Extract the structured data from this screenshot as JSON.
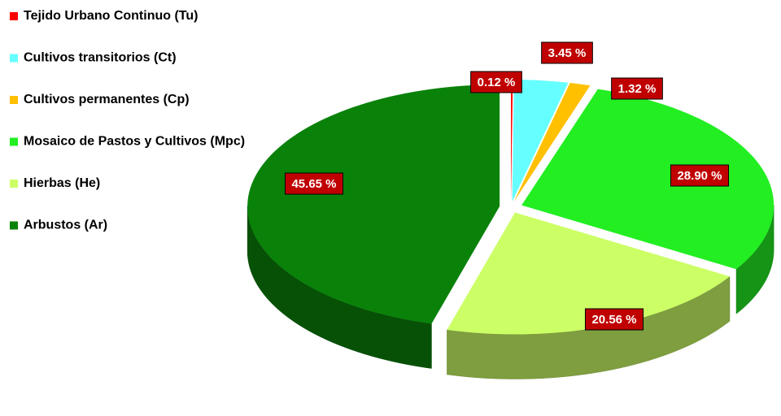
{
  "chart_data": {
    "type": "pie",
    "categories": [
      "Tejido Urbano Continuo (Tu)",
      "Cultivos transitorios (Ct)",
      "Cultivos permanentes (Cp)",
      "Mosaico de Pastos y Cultivos (Mpc)",
      "Hierbas (He)",
      "Arbustos (Ar)"
    ],
    "values": [
      0.12,
      3.45,
      1.32,
      28.9,
      20.56,
      45.65
    ],
    "value_labels": [
      "0.12 %",
      "3.45 %",
      "1.32 %",
      "28.90 %",
      "20.56 %",
      "45.65 %"
    ],
    "colors": [
      "#ff0000",
      "#66ffff",
      "#ffc000",
      "#22ee22",
      "#ccff66",
      "#0a820a"
    ],
    "legend": "upper left"
  }
}
